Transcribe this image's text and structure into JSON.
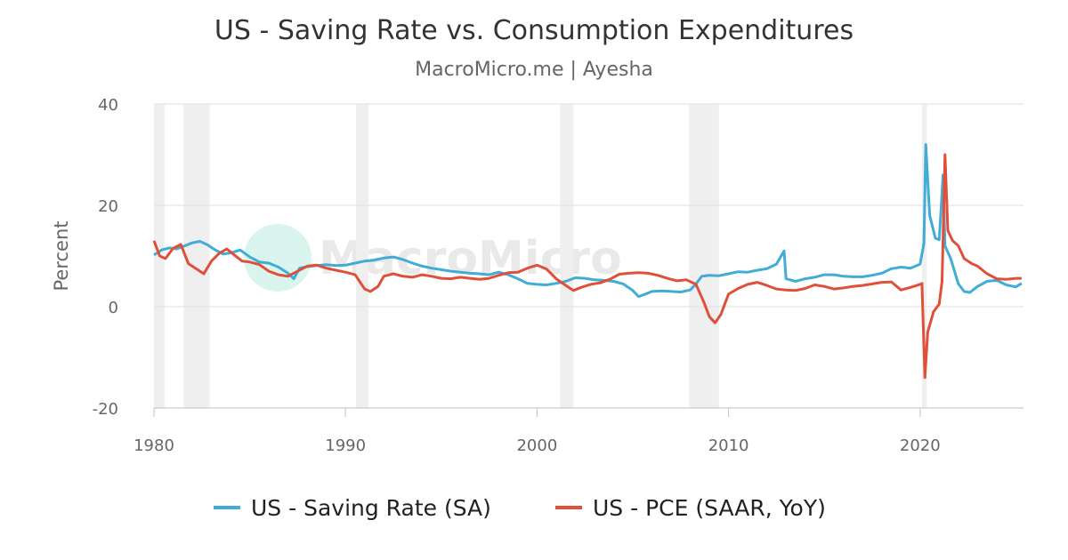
{
  "chart_data": {
    "type": "line",
    "title": "US - Saving Rate vs. Consumption Expenditures",
    "subtitle": "MacroMicro.me | Ayesha",
    "watermark": "MacroMicro",
    "ylabel": "Percent",
    "xlabel": "",
    "xlim": [
      1980,
      2025.4
    ],
    "ylim": [
      -20,
      40
    ],
    "x_ticks": [
      "1980",
      "1990",
      "2000",
      "2010",
      "2020"
    ],
    "y_ticks": [
      "40",
      "20",
      "0",
      "-20"
    ],
    "grid": true,
    "legend_position": "bottom-center",
    "recessions": [
      [
        1980.0,
        1980.55
      ],
      [
        1981.55,
        1982.9
      ],
      [
        1990.55,
        1991.2
      ],
      [
        2001.2,
        2001.9
      ],
      [
        2007.95,
        2009.5
      ],
      [
        2020.1,
        2020.35
      ]
    ],
    "series": [
      {
        "name": "US - Saving Rate (SA)",
        "color": "#41acd6",
        "points": [
          [
            1980.0,
            10.2
          ],
          [
            1980.4,
            11.2
          ],
          [
            1980.8,
            11.6
          ],
          [
            1981.2,
            11.4
          ],
          [
            1981.6,
            12.0
          ],
          [
            1982.0,
            12.6
          ],
          [
            1982.4,
            12.9
          ],
          [
            1982.8,
            12.2
          ],
          [
            1983.2,
            11.2
          ],
          [
            1983.6,
            10.4
          ],
          [
            1984.0,
            10.6
          ],
          [
            1984.5,
            11.2
          ],
          [
            1985.0,
            9.8
          ],
          [
            1985.5,
            8.8
          ],
          [
            1986.0,
            8.6
          ],
          [
            1986.5,
            7.8
          ],
          [
            1987.0,
            6.6
          ],
          [
            1987.3,
            5.5
          ],
          [
            1987.6,
            7.6
          ],
          [
            1988.0,
            7.9
          ],
          [
            1988.5,
            8.1
          ],
          [
            1989.0,
            8.3
          ],
          [
            1989.5,
            8.1
          ],
          [
            1990.0,
            8.2
          ],
          [
            1990.5,
            8.6
          ],
          [
            1991.0,
            9.0
          ],
          [
            1991.5,
            9.2
          ],
          [
            1992.0,
            9.6
          ],
          [
            1992.5,
            9.8
          ],
          [
            1993.0,
            9.3
          ],
          [
            1993.5,
            8.6
          ],
          [
            1994.0,
            8.0
          ],
          [
            1994.5,
            7.6
          ],
          [
            1995.0,
            7.3
          ],
          [
            1995.5,
            7.0
          ],
          [
            1996.0,
            6.8
          ],
          [
            1996.5,
            6.6
          ],
          [
            1997.0,
            6.5
          ],
          [
            1997.5,
            6.3
          ],
          [
            1998.0,
            6.8
          ],
          [
            1998.5,
            6.3
          ],
          [
            1999.0,
            5.5
          ],
          [
            1999.5,
            4.6
          ],
          [
            2000.0,
            4.4
          ],
          [
            2000.5,
            4.3
          ],
          [
            2001.0,
            4.6
          ],
          [
            2001.5,
            5.0
          ],
          [
            2002.0,
            5.7
          ],
          [
            2002.5,
            5.6
          ],
          [
            2003.0,
            5.3
          ],
          [
            2003.5,
            5.2
          ],
          [
            2004.0,
            5.0
          ],
          [
            2004.5,
            4.5
          ],
          [
            2005.0,
            3.2
          ],
          [
            2005.3,
            2.0
          ],
          [
            2005.6,
            2.4
          ],
          [
            2006.0,
            3.0
          ],
          [
            2006.5,
            3.1
          ],
          [
            2007.0,
            3.0
          ],
          [
            2007.5,
            2.9
          ],
          [
            2008.0,
            3.3
          ],
          [
            2008.3,
            4.5
          ],
          [
            2008.6,
            6.0
          ],
          [
            2009.0,
            6.2
          ],
          [
            2009.5,
            6.1
          ],
          [
            2010.0,
            6.5
          ],
          [
            2010.5,
            6.9
          ],
          [
            2011.0,
            6.8
          ],
          [
            2011.5,
            7.2
          ],
          [
            2012.0,
            7.5
          ],
          [
            2012.5,
            8.4
          ],
          [
            2012.9,
            11.0
          ],
          [
            2013.0,
            5.5
          ],
          [
            2013.5,
            5.0
          ],
          [
            2014.0,
            5.5
          ],
          [
            2014.5,
            5.8
          ],
          [
            2015.0,
            6.3
          ],
          [
            2015.5,
            6.3
          ],
          [
            2016.0,
            6.0
          ],
          [
            2016.5,
            5.9
          ],
          [
            2017.0,
            5.9
          ],
          [
            2017.5,
            6.2
          ],
          [
            2018.0,
            6.6
          ],
          [
            2018.5,
            7.5
          ],
          [
            2019.0,
            7.8
          ],
          [
            2019.5,
            7.6
          ],
          [
            2020.0,
            8.4
          ],
          [
            2020.2,
            12.5
          ],
          [
            2020.3,
            32.0
          ],
          [
            2020.5,
            18.0
          ],
          [
            2020.8,
            13.5
          ],
          [
            2021.0,
            13.2
          ],
          [
            2021.1,
            19.6
          ],
          [
            2021.2,
            26.0
          ],
          [
            2021.3,
            12.0
          ],
          [
            2021.6,
            9.5
          ],
          [
            2022.0,
            4.5
          ],
          [
            2022.3,
            3.0
          ],
          [
            2022.6,
            2.8
          ],
          [
            2023.0,
            4.0
          ],
          [
            2023.5,
            5.0
          ],
          [
            2024.0,
            5.2
          ],
          [
            2024.5,
            4.3
          ],
          [
            2025.0,
            3.9
          ],
          [
            2025.3,
            4.6
          ]
        ]
      },
      {
        "name": "US - PCE (SAAR, YoY)",
        "color": "#e04f3a",
        "points": [
          [
            1980.0,
            13.0
          ],
          [
            1980.3,
            10.0
          ],
          [
            1980.6,
            9.5
          ],
          [
            1981.0,
            11.5
          ],
          [
            1981.4,
            12.3
          ],
          [
            1981.8,
            8.5
          ],
          [
            1982.2,
            7.5
          ],
          [
            1982.6,
            6.5
          ],
          [
            1983.0,
            9.0
          ],
          [
            1983.4,
            10.5
          ],
          [
            1983.8,
            11.4
          ],
          [
            1984.2,
            10.2
          ],
          [
            1984.6,
            9.0
          ],
          [
            1985.0,
            8.8
          ],
          [
            1985.5,
            8.3
          ],
          [
            1986.0,
            7.0
          ],
          [
            1986.5,
            6.3
          ],
          [
            1987.0,
            6.0
          ],
          [
            1987.5,
            7.0
          ],
          [
            1988.0,
            8.0
          ],
          [
            1988.5,
            8.2
          ],
          [
            1989.0,
            7.6
          ],
          [
            1989.5,
            7.2
          ],
          [
            1990.0,
            6.8
          ],
          [
            1990.5,
            6.3
          ],
          [
            1991.0,
            3.5
          ],
          [
            1991.3,
            3.0
          ],
          [
            1991.7,
            4.0
          ],
          [
            1992.0,
            6.0
          ],
          [
            1992.5,
            6.5
          ],
          [
            1993.0,
            6.0
          ],
          [
            1993.5,
            5.8
          ],
          [
            1994.0,
            6.3
          ],
          [
            1994.5,
            6.0
          ],
          [
            1995.0,
            5.6
          ],
          [
            1995.5,
            5.5
          ],
          [
            1996.0,
            5.8
          ],
          [
            1996.5,
            5.6
          ],
          [
            1997.0,
            5.4
          ],
          [
            1997.5,
            5.6
          ],
          [
            1998.0,
            6.2
          ],
          [
            1998.5,
            6.7
          ],
          [
            1999.0,
            6.8
          ],
          [
            1999.5,
            7.6
          ],
          [
            2000.0,
            8.2
          ],
          [
            2000.5,
            7.4
          ],
          [
            2001.0,
            5.5
          ],
          [
            2001.5,
            4.2
          ],
          [
            2001.9,
            3.2
          ],
          [
            2002.3,
            3.8
          ],
          [
            2002.8,
            4.4
          ],
          [
            2003.3,
            4.7
          ],
          [
            2003.8,
            5.4
          ],
          [
            2004.3,
            6.4
          ],
          [
            2004.8,
            6.6
          ],
          [
            2005.3,
            6.7
          ],
          [
            2005.8,
            6.6
          ],
          [
            2006.3,
            6.2
          ],
          [
            2006.8,
            5.6
          ],
          [
            2007.3,
            5.1
          ],
          [
            2007.8,
            5.3
          ],
          [
            2008.3,
            4.4
          ],
          [
            2008.7,
            1.0
          ],
          [
            2009.0,
            -2.0
          ],
          [
            2009.3,
            -3.2
          ],
          [
            2009.6,
            -1.5
          ],
          [
            2010.0,
            2.5
          ],
          [
            2010.5,
            3.6
          ],
          [
            2011.0,
            4.4
          ],
          [
            2011.5,
            4.8
          ],
          [
            2012.0,
            4.2
          ],
          [
            2012.5,
            3.5
          ],
          [
            2013.0,
            3.3
          ],
          [
            2013.5,
            3.2
          ],
          [
            2014.0,
            3.6
          ],
          [
            2014.5,
            4.3
          ],
          [
            2015.0,
            4.0
          ],
          [
            2015.5,
            3.5
          ],
          [
            2016.0,
            3.7
          ],
          [
            2016.5,
            4.0
          ],
          [
            2017.0,
            4.2
          ],
          [
            2017.5,
            4.5
          ],
          [
            2018.0,
            4.8
          ],
          [
            2018.5,
            4.9
          ],
          [
            2019.0,
            3.3
          ],
          [
            2019.5,
            3.8
          ],
          [
            2020.0,
            4.4
          ],
          [
            2020.1,
            4.6
          ],
          [
            2020.25,
            -14.0
          ],
          [
            2020.4,
            -5.0
          ],
          [
            2020.7,
            -1.0
          ],
          [
            2021.0,
            0.5
          ],
          [
            2021.15,
            5.0
          ],
          [
            2021.3,
            30.0
          ],
          [
            2021.45,
            15.0
          ],
          [
            2021.7,
            13.0
          ],
          [
            2022.0,
            12.0
          ],
          [
            2022.3,
            9.5
          ],
          [
            2022.7,
            8.5
          ],
          [
            2023.0,
            8.0
          ],
          [
            2023.5,
            6.5
          ],
          [
            2024.0,
            5.5
          ],
          [
            2024.5,
            5.4
          ],
          [
            2025.0,
            5.6
          ],
          [
            2025.3,
            5.6
          ]
        ]
      }
    ]
  }
}
